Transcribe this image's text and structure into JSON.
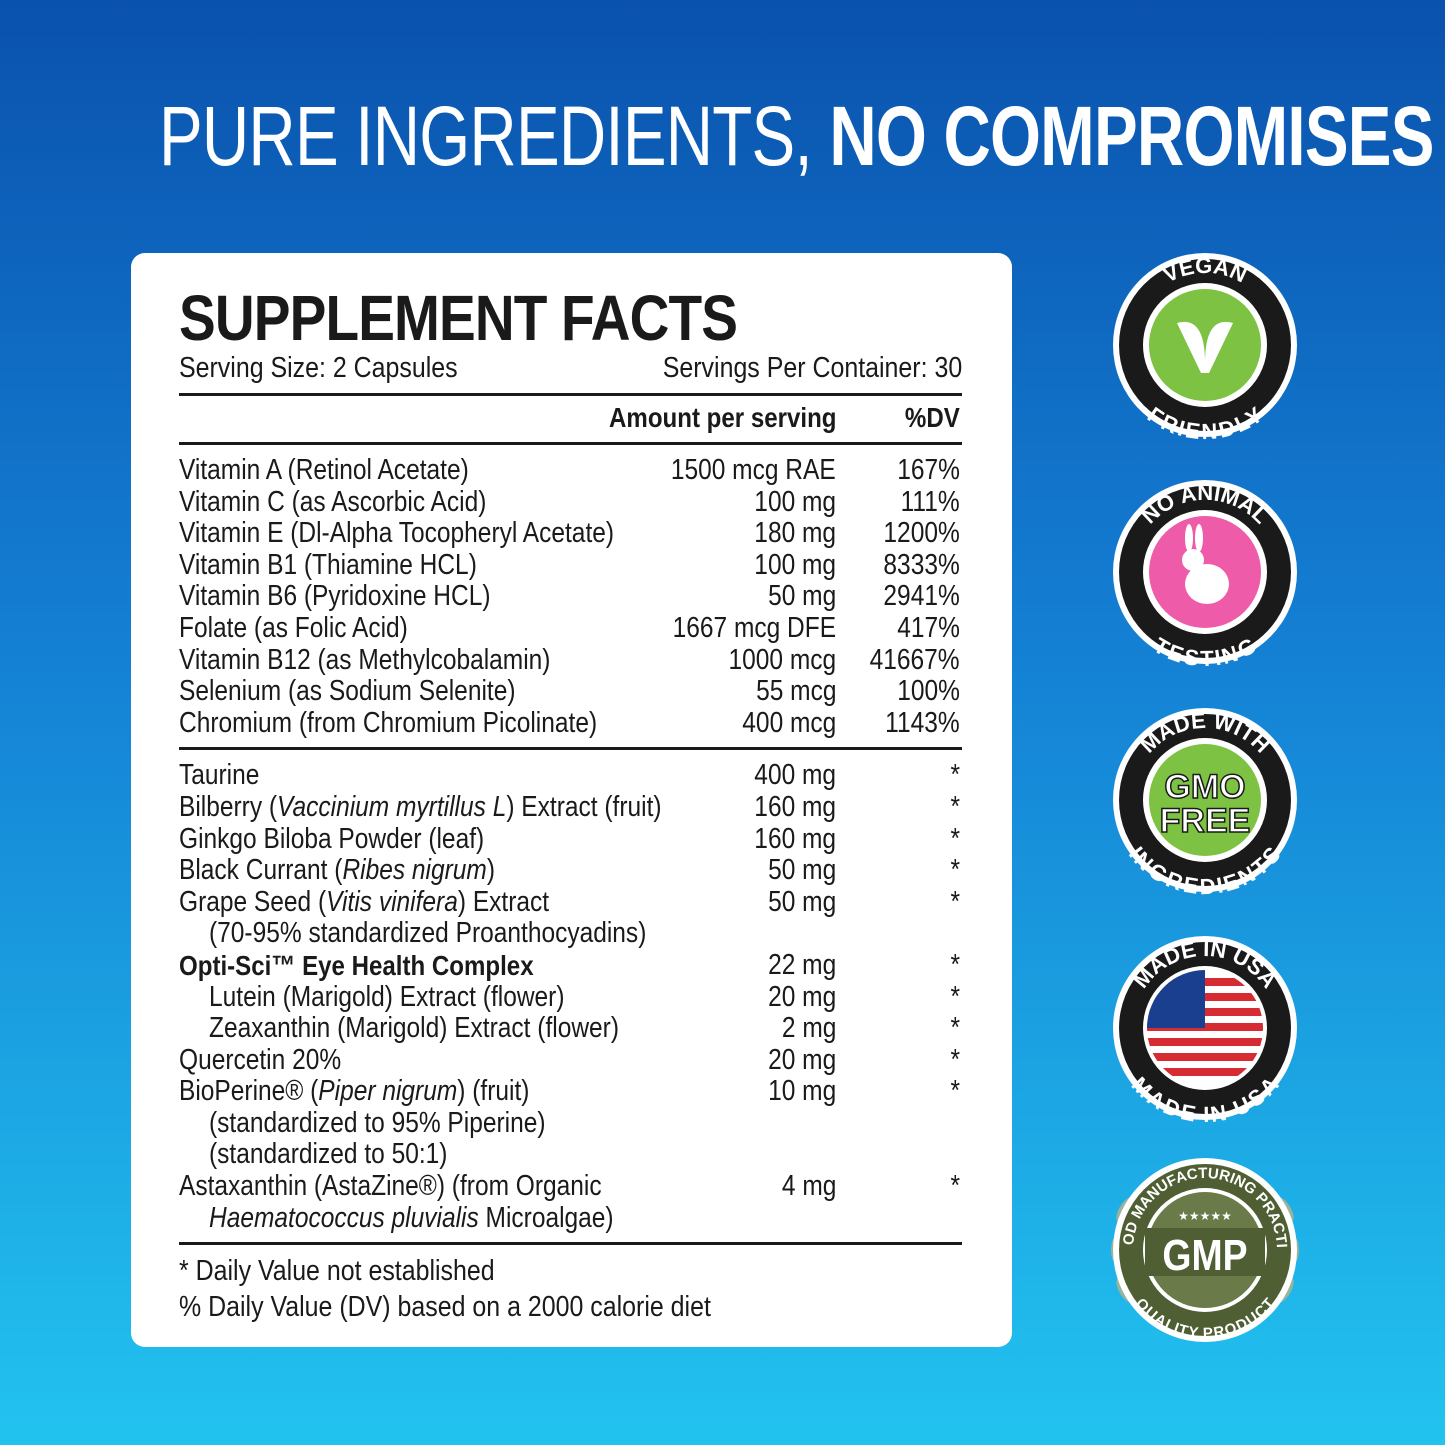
{
  "headline": {
    "light": "PURE INGREDIENTS, ",
    "bold": "NO COMPROMISES"
  },
  "facts": {
    "title": "SUPPLEMENT FACTS",
    "serving_size": "Serving Size: 2 Capsules",
    "servings_per_container": "Servings Per Container: 30",
    "col_amount": "Amount per serving",
    "col_dv": "%DV",
    "vitamins": [
      {
        "name": "Vitamin A (Retinol Acetate)",
        "amount": "1500 mcg RAE",
        "dv": "167%"
      },
      {
        "name": "Vitamin C (as Ascorbic Acid)",
        "amount": "100 mg",
        "dv": "111%"
      },
      {
        "name": "Vitamin E (Dl-Alpha Tocopheryl Acetate)",
        "amount": "180 mg",
        "dv": "1200%"
      },
      {
        "name": "Vitamin B1 (Thiamine HCL)",
        "amount": "100 mg",
        "dv": "8333%"
      },
      {
        "name": "Vitamin B6 (Pyridoxine HCL)",
        "amount": "50 mg",
        "dv": "2941%"
      },
      {
        "name": "Folate (as Folic Acid)",
        "amount": "1667 mcg DFE",
        "dv": "417%"
      },
      {
        "name": "Vitamin B12 (as Methylcobalamin)",
        "amount": "1000 mcg",
        "dv": "41667%"
      },
      {
        "name": "Selenium (as Sodium Selenite)",
        "amount": "55 mcg",
        "dv": "100%"
      },
      {
        "name": "Chromium (from Chromium Picolinate)",
        "amount": "400 mcg",
        "dv": "1143%"
      }
    ],
    "others": [
      {
        "name": "Taurine",
        "amount": "400 mg",
        "dv": "*"
      },
      {
        "name": "Bilberry (<i>Vaccinium myrtillus L</i>) Extract (fruit)",
        "amount": "160 mg",
        "dv": "*"
      },
      {
        "name": "Ginkgo Biloba Powder (leaf)",
        "amount": "160 mg",
        "dv": "*"
      },
      {
        "name": "Black Currant (<i>Ribes nigrum</i>)",
        "amount": "50 mg",
        "dv": "*"
      },
      {
        "name": "Grape Seed (<i>Vitis vinifera</i>) Extract",
        "amount": "50 mg",
        "dv": "*"
      },
      {
        "name": "(70-95% standardized Proanthocyadins)",
        "amount": "",
        "dv": "",
        "indent": true
      },
      {
        "name": "Opti-Sci™ Eye Health Complex",
        "amount": "22 mg",
        "dv": "*",
        "bold": true
      },
      {
        "name": "Lutein (Marigold) Extract (flower)",
        "amount": "20 mg",
        "dv": "*",
        "indent": true
      },
      {
        "name": "Zeaxanthin (Marigold) Extract (flower)",
        "amount": "2 mg",
        "dv": "*",
        "indent": true
      },
      {
        "name": "Quercetin 20%",
        "amount": "20 mg",
        "dv": "*"
      },
      {
        "name": "BioPerine® (<i>Piper nigrum</i>) (fruit)",
        "amount": "10 mg",
        "dv": "*"
      },
      {
        "name": "(standardized to 95% Piperine)",
        "amount": "",
        "dv": "",
        "indent": true
      },
      {
        "name": "(standardized to 50:1)",
        "amount": "",
        "dv": "",
        "indent": true
      },
      {
        "name": "Astaxanthin (AstaZine®) (from Organic",
        "amount": "4 mg",
        "dv": "*"
      },
      {
        "name": "<i>Haematococcus pluvialis</i> Microalgae)",
        "amount": "",
        "dv": "",
        "indent": true
      }
    ],
    "footnote1": "*  Daily Value not established",
    "footnote2": "% Daily Value (DV) based on a 2000 calorie diet"
  },
  "badges": [
    {
      "top": "VEGAN",
      "bottom": "FRIENDLY",
      "center": "V",
      "color": "#7dc242"
    },
    {
      "top": "NO ANIMAL",
      "bottom": "TESTING",
      "center": "rabbit",
      "color": "#ee5ba8"
    },
    {
      "top": "MADE WITH",
      "bottom": "INGREDIENTS",
      "center": "GMO FREE",
      "color": "#7dc242"
    },
    {
      "top": "MADE IN USA",
      "bottom": "MADE IN USA",
      "center": "flag",
      "color": "#1b3f8f"
    },
    {
      "top": "GOOD MANUFACTURING PRACTICE",
      "bottom": "QUALITY PRODUCT",
      "center": "GMP",
      "color": "#4f5e33"
    }
  ]
}
